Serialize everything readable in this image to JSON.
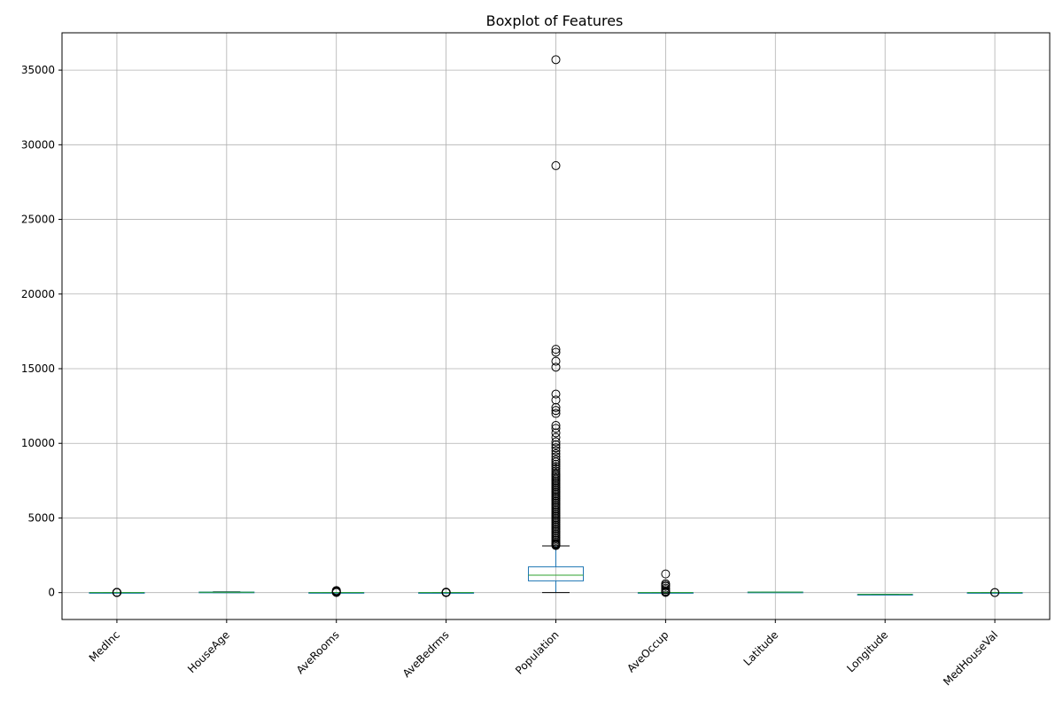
{
  "chart_data": {
    "type": "box",
    "title": "Boxplot of Features",
    "xlabel": "",
    "ylabel": "",
    "ylim": [
      -1800,
      37500
    ],
    "yticks": [
      0,
      5000,
      10000,
      15000,
      20000,
      25000,
      30000,
      35000
    ],
    "grid": true,
    "categories": [
      "MedInc",
      "HouseAge",
      "AveRooms",
      "AveBedrms",
      "Population",
      "AveOccup",
      "Latitude",
      "Longitude",
      "MedHouseVal"
    ],
    "boxes": [
      {
        "name": "MedInc",
        "whislo": 0.5,
        "q1": 2.6,
        "median": 3.5,
        "q3": 4.7,
        "whishi": 8.0,
        "fliers": [
          9,
          10,
          11,
          12,
          13,
          15
        ]
      },
      {
        "name": "HouseAge",
        "whislo": 1,
        "q1": 18,
        "median": 29,
        "q3": 37,
        "whishi": 52,
        "fliers": []
      },
      {
        "name": "AveRooms",
        "whislo": 0.8,
        "q1": 4.4,
        "median": 5.2,
        "q3": 6.1,
        "whishi": 8.5,
        "fliers": [
          10,
          20,
          40,
          60,
          100,
          140
        ]
      },
      {
        "name": "AveBedrms",
        "whislo": 0.8,
        "q1": 1.0,
        "median": 1.05,
        "q3": 1.1,
        "whishi": 1.24,
        "fliers": [
          2,
          5,
          10,
          20,
          34
        ]
      },
      {
        "name": "Population",
        "whislo": 3,
        "q1": 787,
        "median": 1166,
        "q3": 1725,
        "whishi": 3130,
        "fliers": [
          3150,
          3200,
          3250,
          3300,
          3400,
          3500,
          3600,
          3700,
          3800,
          3900,
          4000,
          4100,
          4200,
          4300,
          4400,
          4500,
          4600,
          4700,
          4800,
          4900,
          5000,
          5100,
          5200,
          5300,
          5400,
          5500,
          5600,
          5700,
          5800,
          5900,
          6000,
          6100,
          6200,
          6300,
          6400,
          6500,
          6600,
          6700,
          6800,
          6900,
          7000,
          7100,
          7200,
          7300,
          7400,
          7500,
          7600,
          7700,
          7800,
          7900,
          8000,
          8150,
          8300,
          8450,
          8600,
          8750,
          8900,
          9100,
          9300,
          9500,
          9700,
          9900,
          10100,
          10400,
          10700,
          11000,
          11200,
          12000,
          12200,
          12400,
          12900,
          13300,
          15100,
          15500,
          16100,
          16300,
          28600,
          35700
        ]
      },
      {
        "name": "AveOccup",
        "whislo": 0.7,
        "q1": 2.4,
        "median": 2.8,
        "q3": 3.3,
        "whishi": 4.6,
        "fliers": [
          10,
          30,
          60,
          100,
          200,
          300,
          420,
          500,
          600,
          1250
        ]
      },
      {
        "name": "Latitude",
        "whislo": 32.5,
        "q1": 33.9,
        "median": 34.3,
        "q3": 37.7,
        "whishi": 42,
        "fliers": []
      },
      {
        "name": "Longitude",
        "whislo": -124.3,
        "q1": -121.8,
        "median": -118.5,
        "q3": -118.0,
        "whishi": -114.3,
        "fliers": []
      },
      {
        "name": "MedHouseVal",
        "whislo": 0.15,
        "q1": 1.2,
        "median": 1.8,
        "q3": 2.65,
        "whishi": 4.8,
        "fliers": [
          4.9,
          5.0
        ]
      }
    ]
  }
}
